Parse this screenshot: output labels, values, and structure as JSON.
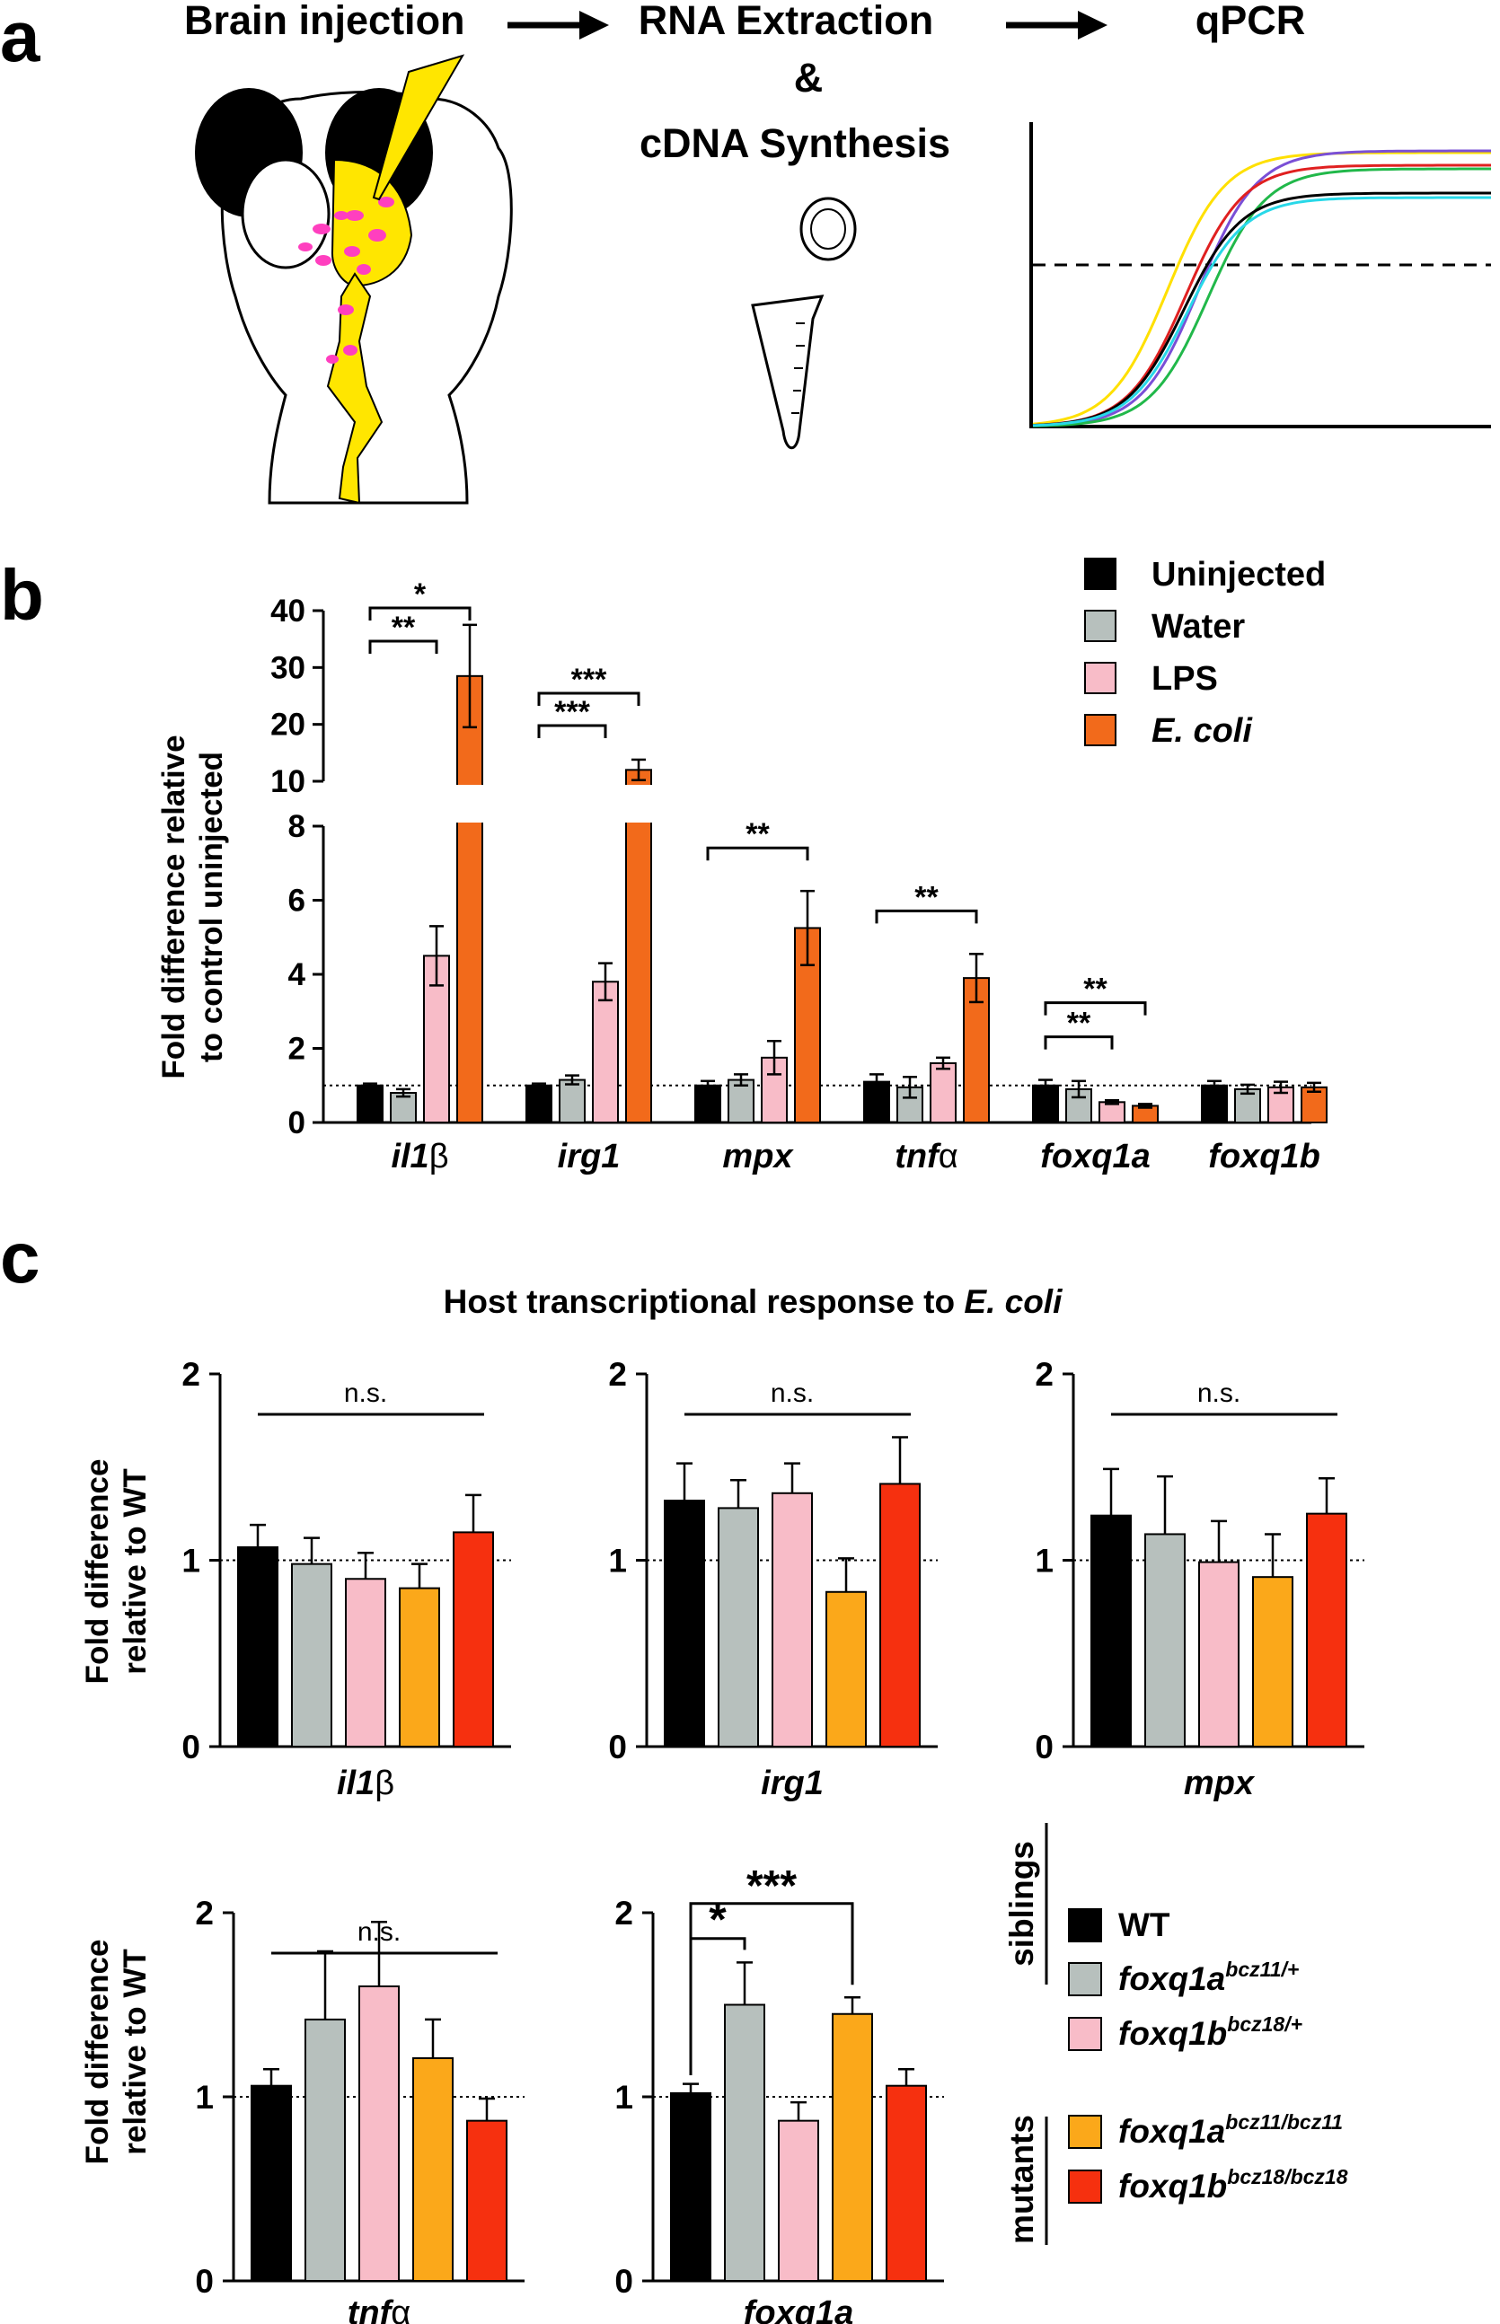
{
  "panel_a": {
    "letter": "a",
    "steps": [
      "Brain injection",
      "RNA Extraction",
      "&",
      "cDNA Synthesis",
      "qPCR"
    ],
    "curve_colors": [
      "#ffe000",
      "#7a4fd6",
      "#21b84a",
      "#e02020",
      "#000000",
      "#28d8e8"
    ]
  },
  "panel_b": {
    "letter": "b",
    "ylabel_line1": "Fold difference relative",
    "ylabel_line2": "to control uninjected",
    "legend": [
      {
        "label": "Uninjected",
        "color": "#000000",
        "italic": false
      },
      {
        "label": "Water",
        "color": "#b7c0bd",
        "italic": false
      },
      {
        "label": "LPS",
        "color": "#f8bcc8",
        "italic": false
      },
      {
        "label": "E. coli",
        "color": "#f26a1b",
        "italic": true
      }
    ]
  },
  "panel_c": {
    "letter": "c",
    "title_prefix": "Host transcriptional response to ",
    "title_italic": "E. coli",
    "ylabel_line1": "Fold difference",
    "ylabel_line2": "relative to WT",
    "siblings_label": "siblings",
    "mutants_label": "mutants",
    "legend": [
      {
        "base": "WT",
        "sup": "",
        "color": "#000000"
      },
      {
        "base": "foxq1a",
        "sup": "bcz11/+",
        "color": "#b7c0bd"
      },
      {
        "base": "foxq1b",
        "sup": "bcz18/+",
        "color": "#f8bcc8"
      },
      {
        "base": "foxq1a",
        "sup": "bcz11/bcz11",
        "color": "#fba81a"
      },
      {
        "base": "foxq1b",
        "sup": "bcz18/bcz18",
        "color": "#f6300f"
      }
    ]
  },
  "chart_data": [
    {
      "type": "bar",
      "panel": "b",
      "ylabel": "Fold difference relative to control uninjected",
      "broken_axis": {
        "lower_range": [
          0,
          8
        ],
        "upper_range": [
          10,
          40
        ]
      },
      "lower_ticks": [
        0,
        2,
        4,
        6,
        8
      ],
      "upper_ticks": [
        10,
        20,
        30,
        40
      ],
      "reference_line": 1,
      "categories": [
        "il1β",
        "irg1",
        "mpx",
        "tnfα",
        "foxq1a",
        "foxq1b"
      ],
      "series": [
        {
          "name": "Uninjected",
          "values": [
            1.0,
            1.0,
            1.0,
            1.1,
            1.0,
            1.0
          ],
          "errors": [
            0.05,
            0.05,
            0.12,
            0.2,
            0.15,
            0.12
          ]
        },
        {
          "name": "Water",
          "values": [
            0.8,
            1.15,
            1.15,
            0.95,
            0.9,
            0.9
          ],
          "errors": [
            0.1,
            0.12,
            0.15,
            0.28,
            0.22,
            0.12
          ]
        },
        {
          "name": "LPS",
          "values": [
            4.5,
            3.8,
            1.75,
            1.6,
            0.55,
            0.95
          ],
          "errors": [
            0.8,
            0.5,
            0.45,
            0.15,
            0.05,
            0.15
          ]
        },
        {
          "name": "E. coli",
          "values": [
            28.5,
            12,
            5.25,
            3.9,
            0.45,
            0.95
          ],
          "errors": [
            9,
            1.8,
            1.0,
            0.65,
            0.05,
            0.12
          ]
        }
      ],
      "annotations": [
        {
          "category": 0,
          "from": 0,
          "to": 2,
          "label": "**",
          "level": 0
        },
        {
          "category": 0,
          "from": 0,
          "to": 3,
          "label": "*",
          "level": 1
        },
        {
          "category": 1,
          "from": 0,
          "to": 2,
          "label": "***",
          "level": 0
        },
        {
          "category": 1,
          "from": 0,
          "to": 3,
          "label": "***",
          "level": 1
        },
        {
          "category": 2,
          "from": 0,
          "to": 3,
          "label": "**",
          "level": 0
        },
        {
          "category": 3,
          "from": 0,
          "to": 3,
          "label": "**",
          "level": 0
        },
        {
          "category": 4,
          "from": 0,
          "to": 2,
          "label": "**",
          "level": 0
        },
        {
          "category": 4,
          "from": 0,
          "to": 3,
          "label": "**",
          "level": 1
        }
      ]
    },
    {
      "type": "bar",
      "panel": "c",
      "gene": "il1β",
      "ylabel": "Fold difference relative to WT",
      "ylim": [
        0,
        2
      ],
      "ticks": [
        0,
        1,
        2
      ],
      "groups": [
        "WT",
        "foxq1a bcz11/+",
        "foxq1b bcz18/+",
        "foxq1a bcz11/bcz11",
        "foxq1b bcz18/bcz18"
      ],
      "values": [
        1.07,
        0.98,
        0.9,
        0.85,
        1.15
      ],
      "errors": [
        0.12,
        0.14,
        0.14,
        0.13,
        0.2
      ],
      "significance": {
        "label": "n.s."
      }
    },
    {
      "type": "bar",
      "panel": "c",
      "gene": "irg1",
      "ylim": [
        0,
        2
      ],
      "ticks": [
        0,
        1,
        2
      ],
      "groups": [
        "WT",
        "foxq1a bcz11/+",
        "foxq1b bcz18/+",
        "foxq1a bcz11/bcz11",
        "foxq1b bcz18/bcz18"
      ],
      "values": [
        1.32,
        1.28,
        1.36,
        0.83,
        1.41
      ],
      "errors": [
        0.2,
        0.15,
        0.16,
        0.18,
        0.25
      ],
      "significance": {
        "label": "n.s."
      }
    },
    {
      "type": "bar",
      "panel": "c",
      "gene": "mpx",
      "ylim": [
        0,
        2
      ],
      "ticks": [
        0,
        1,
        2
      ],
      "groups": [
        "WT",
        "foxq1a bcz11/+",
        "foxq1b bcz18/+",
        "foxq1a bcz11/bcz11",
        "foxq1b bcz18/bcz18"
      ],
      "values": [
        1.24,
        1.14,
        0.99,
        0.91,
        1.25
      ],
      "errors": [
        0.25,
        0.31,
        0.22,
        0.23,
        0.19
      ],
      "significance": {
        "label": "n.s."
      }
    },
    {
      "type": "bar",
      "panel": "c",
      "gene": "tnfα",
      "ylabel": "Fold difference relative to WT",
      "ylim": [
        0,
        2
      ],
      "ticks": [
        0,
        1,
        2
      ],
      "groups": [
        "WT",
        "foxq1a bcz11/+",
        "foxq1b bcz18/+",
        "foxq1a bcz11/bcz11",
        "foxq1b bcz18/bcz18"
      ],
      "values": [
        1.06,
        1.42,
        1.6,
        1.21,
        0.87
      ],
      "errors": [
        0.09,
        0.37,
        0.35,
        0.21,
        0.12
      ],
      "significance": {
        "label": "n.s."
      }
    },
    {
      "type": "bar",
      "panel": "c",
      "gene": "foxq1a",
      "ylim": [
        0,
        2
      ],
      "ticks": [
        0,
        1,
        2
      ],
      "groups": [
        "WT",
        "foxq1a bcz11/+",
        "foxq1b bcz18/+",
        "foxq1a bcz11/bcz11",
        "foxq1b bcz18/bcz18"
      ],
      "values": [
        1.02,
        1.5,
        0.87,
        1.45,
        1.06
      ],
      "errors": [
        0.05,
        0.23,
        0.1,
        0.09,
        0.09
      ],
      "significance": {
        "pairs": [
          {
            "from": 0,
            "to": 1,
            "label": "*"
          },
          {
            "from": 0,
            "to": 3,
            "label": "***"
          }
        ]
      }
    }
  ]
}
